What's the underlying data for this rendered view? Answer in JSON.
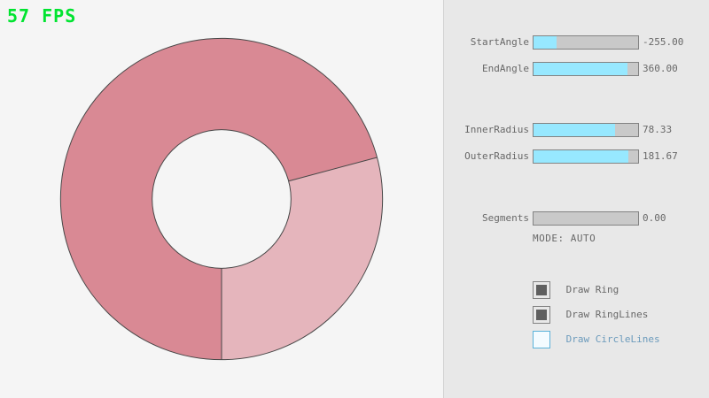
{
  "fps": {
    "label": "57 FPS",
    "color": "#00e430"
  },
  "ring": {
    "color_single_pass": "#e5b5bc",
    "color_double_pass": "#d98994",
    "line_color": "#474747",
    "start_angle": -255.0,
    "end_angle": 360.0,
    "inner_radius": 78.33,
    "outer_radius": 181.67,
    "segments": 0
  },
  "theme": {
    "accent_fill": "#97e8ff"
  },
  "panel": {
    "sliders": [
      {
        "label": "StartAngle",
        "value": "-255.00",
        "fraction": 0.2167
      },
      {
        "label": "EndAngle",
        "value": "360.00",
        "fraction": 0.9
      },
      {
        "label": "InnerRadius",
        "value": "78.33",
        "fraction": 0.7833
      },
      {
        "label": "OuterRadius",
        "value": "181.67",
        "fraction": 0.9083
      },
      {
        "label": "Segments",
        "value": "0.00",
        "fraction": 0.0
      }
    ],
    "mode_text": "MODE: AUTO",
    "checkboxes": [
      {
        "label": "Draw Ring",
        "checked": true
      },
      {
        "label": "Draw RingLines",
        "checked": true
      },
      {
        "label": "Draw CircleLines",
        "checked": false
      }
    ]
  }
}
